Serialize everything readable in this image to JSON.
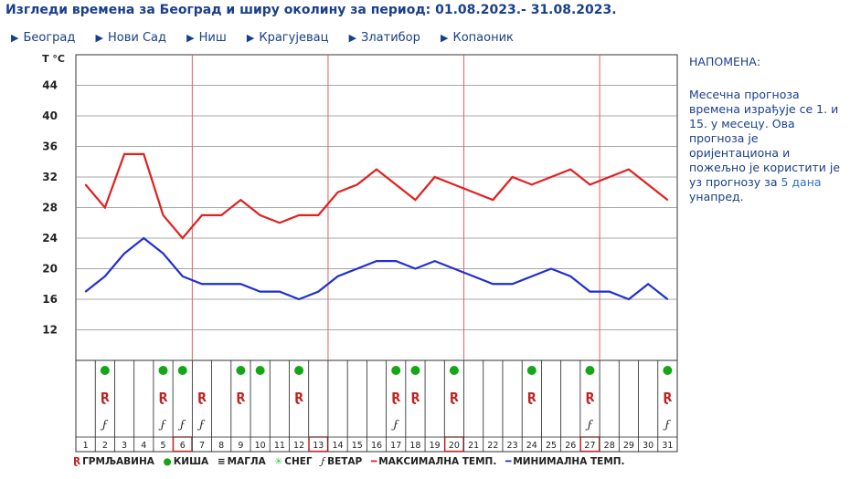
{
  "header": {
    "title": "Изгледи времена за Београд и ширу околину за период: 01.08.2023.- 31.08.2023."
  },
  "cities": [
    "Београд",
    "Нови Сад",
    "Ниш",
    "Крагујевац",
    "Златибор",
    "Копаоник"
  ],
  "note": {
    "title": "НАПОМЕНА:",
    "text_before": "Месечна прогноза времена израђује се 1. и 15. у месецу. Ова прогноза је оријентациона и пожељно је користити је уз прогнозу за ",
    "link": "5 дана",
    "text_after": " унапред."
  },
  "legend": {
    "thunder": "ГРМЉАВИНА",
    "rain": "КИША",
    "fog": "МАГЛА",
    "snow": "СНЕГ",
    "wind": "ВЕТАР",
    "max": "МАКСИМАЛНА ТЕМП.",
    "min": "МИНИМАЛНА ТЕМП."
  },
  "colors": {
    "max": "#e02020",
    "min": "#1f2fd0",
    "rain": "#14a614",
    "thunder": "#c02020",
    "grid": "#8a8a8a",
    "redline": "#e06060",
    "title": "#1a3f8a"
  },
  "chart_data": {
    "type": "line",
    "ylabel": "T °C",
    "yticks": [
      12,
      16,
      20,
      24,
      28,
      32,
      36,
      40,
      44
    ],
    "ylim": [
      8,
      48
    ],
    "x": [
      1,
      2,
      3,
      4,
      5,
      6,
      7,
      8,
      9,
      10,
      11,
      12,
      13,
      14,
      15,
      16,
      17,
      18,
      19,
      20,
      21,
      22,
      23,
      24,
      25,
      26,
      27,
      28,
      29,
      30,
      31
    ],
    "series": [
      {
        "name": "МАКСИМАЛНА ТЕМП.",
        "values": [
          31,
          28,
          35,
          35,
          27,
          24,
          27,
          27,
          29,
          27,
          26,
          27,
          27,
          30,
          31,
          33,
          31,
          29,
          32,
          31,
          30,
          29,
          32,
          31,
          32,
          33,
          31,
          32,
          33,
          31,
          29
        ]
      },
      {
        "name": "МИНИМАЛНА ТЕМП.",
        "values": [
          17,
          19,
          22,
          24,
          22,
          19,
          18,
          18,
          18,
          17,
          17,
          16,
          17,
          19,
          20,
          21,
          21,
          20,
          21,
          20,
          19,
          18,
          18,
          19,
          20,
          19,
          17,
          17,
          16,
          18,
          16
        ]
      }
    ],
    "highlight_days": [
      6,
      13,
      20,
      27
    ],
    "rain_days": [
      2,
      5,
      6,
      9,
      10,
      12,
      17,
      18,
      20,
      24,
      27,
      31
    ],
    "thunder_days": [
      2,
      5,
      7,
      9,
      12,
      17,
      18,
      20,
      24,
      27,
      31
    ],
    "wind_days": [
      2,
      5,
      6,
      7,
      17,
      27,
      31
    ]
  }
}
